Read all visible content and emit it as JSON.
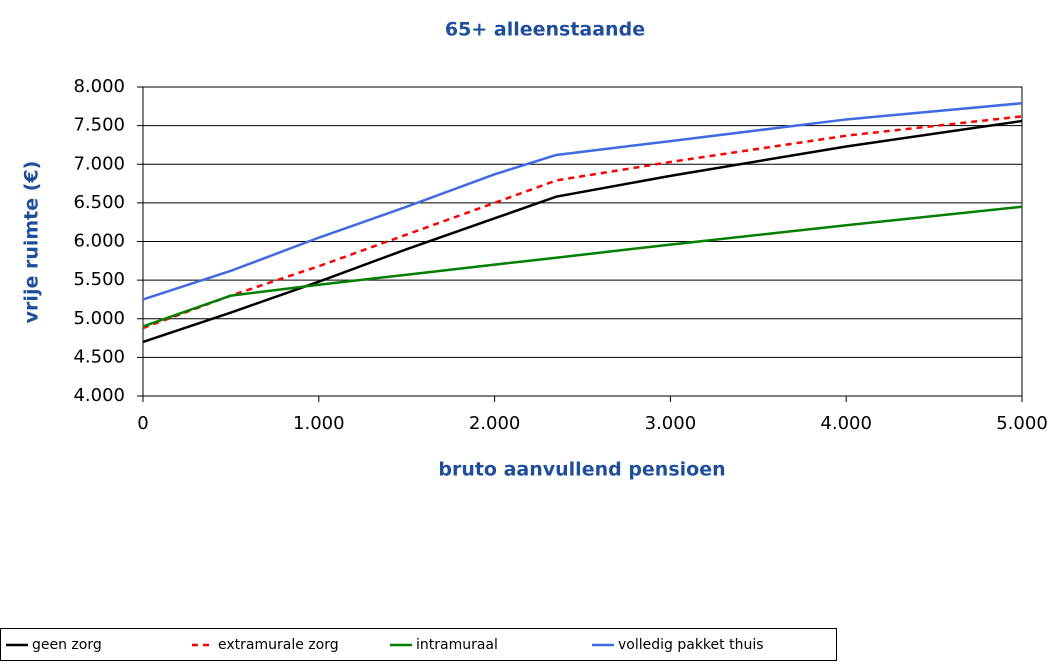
{
  "chart_data": {
    "type": "line",
    "title": "65+ alleenstaande",
    "x_label": "bruto aanvullend pensioen",
    "y_label": "vrije ruimte (€)",
    "x": [
      0,
      500,
      1000,
      1500,
      2000,
      2350,
      3000,
      4000,
      5000
    ],
    "series": [
      {
        "name": "geen zorg",
        "color": "#000000",
        "dashed": false,
        "values": [
          4700,
          5080,
          5480,
          5900,
          6300,
          6580,
          6850,
          7230,
          7560
        ]
      },
      {
        "name": "extramurale zorg",
        "color": "#ff0000",
        "dashed": true,
        "values": [
          4880,
          5300,
          5680,
          6090,
          6500,
          6790,
          7030,
          7370,
          7620
        ]
      },
      {
        "name": "intramuraal",
        "color": "#008000",
        "dashed": false,
        "values": [
          4900,
          5300,
          5440,
          5570,
          5700,
          5790,
          5960,
          6210,
          6450
        ]
      },
      {
        "name": "volledig pakket thuis",
        "color": "#4169e1",
        "dashed": false,
        "values": [
          5250,
          5620,
          6050,
          6450,
          6870,
          7120,
          7300,
          7580,
          7790
        ]
      }
    ],
    "xlim": [
      0,
      5000
    ],
    "ylim": [
      4000,
      8000
    ],
    "xticks": [
      0,
      {
        "value": 1000,
        "label": "1.000"
      },
      {
        "value": 2000,
        "label": "2.000"
      },
      {
        "value": 3000,
        "label": "3.000"
      },
      {
        "value": 4000,
        "label": "4.000"
      },
      {
        "value": 5000,
        "label": "5.000"
      }
    ],
    "yticks": [
      {
        "value": 4000,
        "label": "4.000"
      },
      {
        "value": 4500,
        "label": "4.500"
      },
      {
        "value": 5000,
        "label": "5.000"
      },
      {
        "value": 5500,
        "label": "5.500"
      },
      {
        "value": 6000,
        "label": "6.000"
      },
      {
        "value": 6500,
        "label": "6.500"
      },
      {
        "value": 7000,
        "label": "7.000"
      },
      {
        "value": 7500,
        "label": "7.500"
      },
      {
        "value": 8000,
        "label": "8.000"
      }
    ],
    "grid": true,
    "legend": "bottom"
  }
}
